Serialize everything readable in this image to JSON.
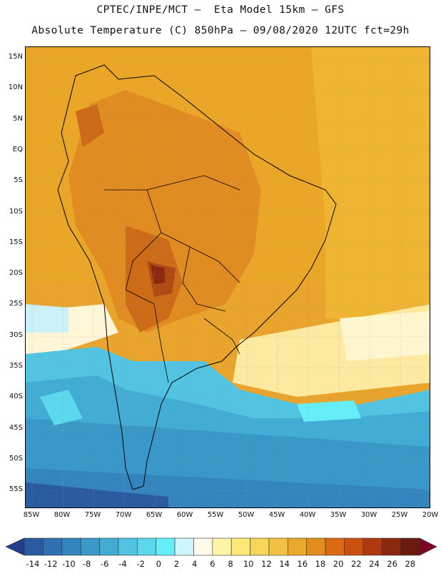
{
  "header": {
    "line1": "CPTEC/INPE/MCT –  Eta Model 15km – GFS",
    "line2": "Absolute Temperature (C) 850hPa – 09/08/2020 12UTC fct=29h"
  },
  "map": {
    "lat_ticks": [
      "15N",
      "10N",
      "5N",
      "EQ",
      "5S",
      "10S",
      "15S",
      "20S",
      "25S",
      "30S",
      "35S",
      "40S",
      "45S",
      "50S",
      "55S"
    ],
    "lon_ticks": [
      "85W",
      "80W",
      "75W",
      "70W",
      "65W",
      "60W",
      "55W",
      "50W",
      "45W",
      "40W",
      "35W",
      "30W",
      "25W",
      "20W"
    ]
  },
  "colorbar": {
    "labels": [
      "-14",
      "-12",
      "-10",
      "-8",
      "-6",
      "-4",
      "-2",
      "0",
      "2",
      "4",
      "6",
      "8",
      "10",
      "12",
      "14",
      "16",
      "18",
      "20",
      "22",
      "24",
      "26",
      "28"
    ],
    "colors": [
      "#1f3e8c",
      "#2a5aa0",
      "#2f70b0",
      "#3484be",
      "#3a98c8",
      "#43acd4",
      "#52c4e2",
      "#5cd8ec",
      "#66eef8",
      "#ccf6fc",
      "#fffbe8",
      "#fff4a8",
      "#fde878",
      "#f8d45a",
      "#f2c040",
      "#eca82a",
      "#e48c1e",
      "#dc6a14",
      "#cc5010",
      "#b03a10",
      "#8a2810",
      "#6a1a0e",
      "#7a0a24"
    ]
  }
}
